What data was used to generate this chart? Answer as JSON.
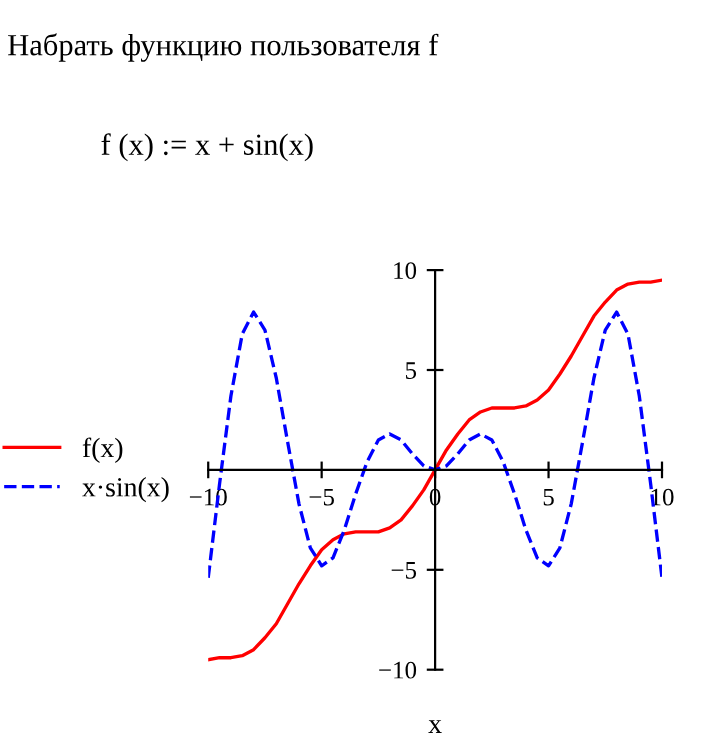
{
  "chart_data": {
    "type": "line",
    "title": "Набрать функцию пользователя f",
    "subtitle": "f (x) := x + sin(x)",
    "xlabel": "x",
    "x": [
      -10,
      -9.5,
      -9,
      -8.5,
      -8,
      -7.5,
      -7,
      -6.5,
      -6,
      -5.5,
      -5,
      -4.5,
      -4,
      -3.5,
      -3,
      -2.5,
      -2,
      -1.5,
      -1,
      -0.5,
      0,
      0.5,
      1,
      1.5,
      2,
      2.5,
      3,
      3.5,
      4,
      4.5,
      5,
      5.5,
      6,
      6.5,
      7,
      7.5,
      8,
      8.5,
      9,
      9.5,
      10
    ],
    "series": [
      {
        "name": "f(x)",
        "color": "#ff0000",
        "line_style": "solid",
        "values": [
          -9.5,
          -9.4,
          -9.4,
          -9.3,
          -9.0,
          -8.4,
          -7.7,
          -6.7,
          -5.7,
          -4.8,
          -4.0,
          -3.5,
          -3.2,
          -3.1,
          -3.1,
          -3.1,
          -2.9,
          -2.5,
          -1.8,
          -1.0,
          0,
          1.0,
          1.8,
          2.5,
          2.9,
          3.1,
          3.1,
          3.1,
          3.2,
          3.5,
          4.0,
          4.8,
          5.7,
          6.7,
          7.7,
          8.4,
          9.0,
          9.3,
          9.4,
          9.4,
          9.5
        ]
      },
      {
        "name": "x·sin(x)",
        "color": "#0000ff",
        "line_style": "dashed",
        "values": [
          -5.4,
          -0.7,
          3.7,
          6.8,
          7.9,
          7.0,
          4.6,
          1.4,
          -1.7,
          -3.9,
          -4.8,
          -4.4,
          -3.0,
          -1.2,
          0.4,
          1.5,
          1.8,
          1.5,
          0.8,
          0.2,
          0,
          0.2,
          0.8,
          1.5,
          1.8,
          1.5,
          0.4,
          -1.2,
          -3.0,
          -4.4,
          -4.8,
          -3.9,
          -1.7,
          1.4,
          4.6,
          7.0,
          7.9,
          6.8,
          3.7,
          -0.7,
          -5.4
        ]
      }
    ],
    "xlim": [
      -10,
      10
    ],
    "ylim": [
      -10,
      10
    ],
    "xticks": [
      {
        "value": -10,
        "label": "−10"
      },
      {
        "value": -5,
        "label": "−5"
      },
      0,
      5,
      10
    ],
    "yticks": [
      {
        "value": -10,
        "label": "−10"
      },
      {
        "value": -5,
        "label": "−5"
      },
      5,
      10
    ],
    "grid": false,
    "legend": "left",
    "marker": "none"
  }
}
